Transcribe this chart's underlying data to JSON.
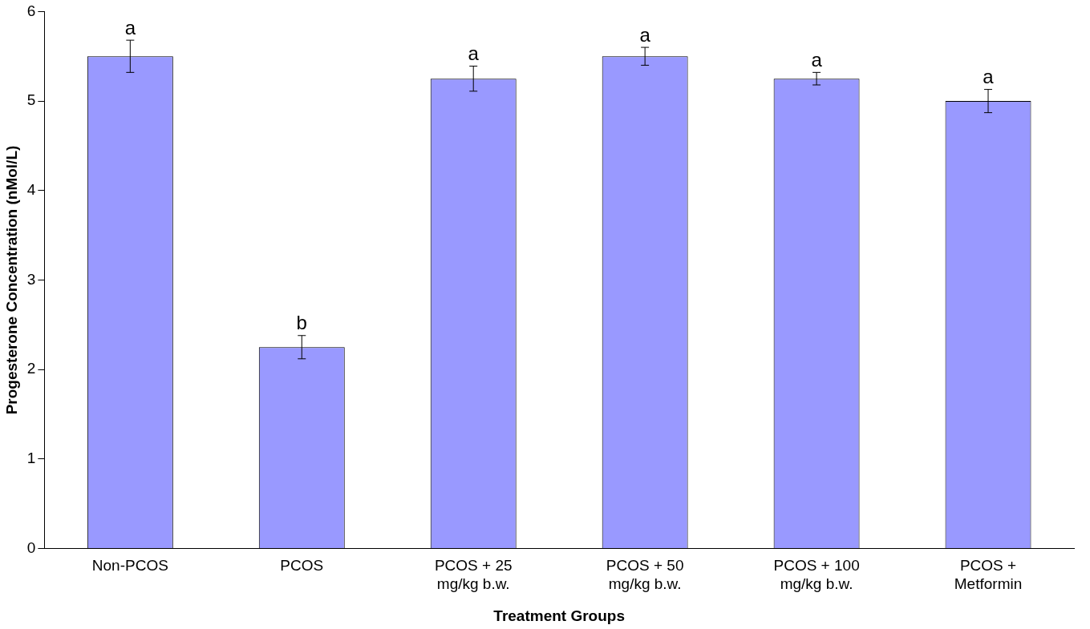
{
  "chart_data": {
    "type": "bar",
    "xlabel": "Treatment Groups",
    "ylabel": "Progesterone Concentration (nMol/L)",
    "categories": [
      "Non-PCOS",
      "PCOS",
      "PCOS + 25\nmg/kg b.w.",
      "PCOS + 50\nmg/kg b.w.",
      "PCOS + 100\nmg/kg b.w.",
      "PCOS +\nMetformin"
    ],
    "values": [
      5.5,
      2.25,
      5.25,
      5.5,
      5.25,
      5.0
    ],
    "errors": [
      0.18,
      0.13,
      0.14,
      0.1,
      0.07,
      0.13
    ],
    "color": "#9999ff",
    "ylim": [
      0,
      6
    ],
    "yticks": [
      0,
      1,
      2,
      3,
      4,
      5,
      6
    ],
    "grid": false,
    "legend": false,
    "annotations": [
      {
        "text": "a",
        "x": "Non-PCOS",
        "y": 5.68
      },
      {
        "text": "b",
        "x": "PCOS",
        "y": 2.38
      },
      {
        "text": "a",
        "x": "PCOS + 25\nmg/kg b.w.",
        "y": 5.39
      },
      {
        "text": "a",
        "x": "PCOS + 50\nmg/kg b.w.",
        "y": 5.6
      },
      {
        "text": "a",
        "x": "PCOS + 100\nmg/kg b.w.",
        "y": 5.32
      },
      {
        "text": "a",
        "x": "PCOS +\nMetformin",
        "y": 5.13
      }
    ]
  }
}
